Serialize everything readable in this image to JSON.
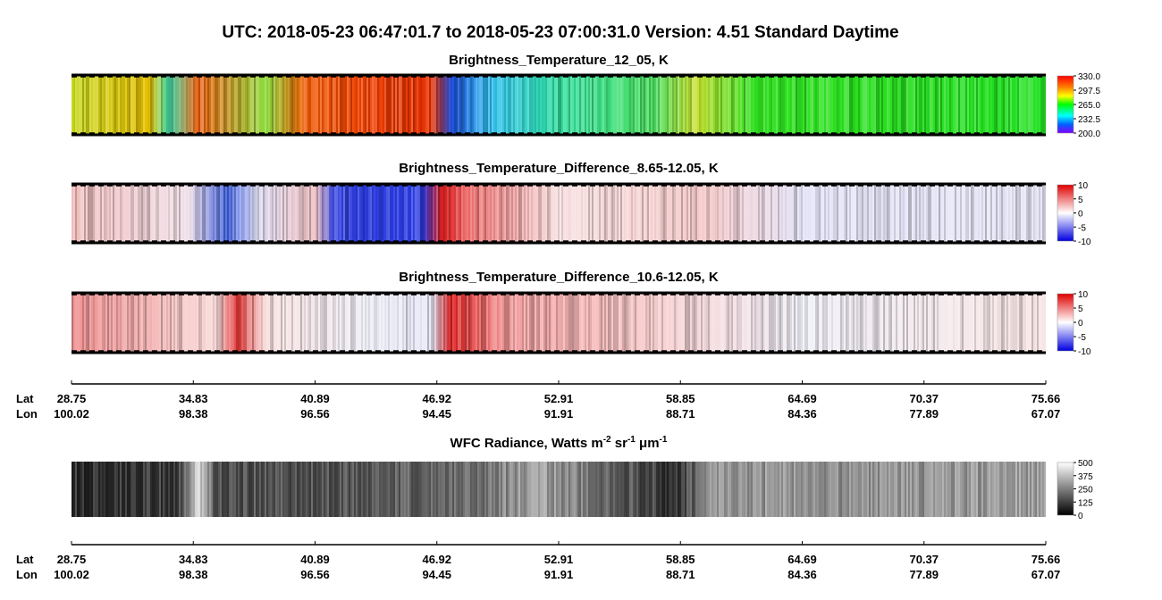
{
  "title": "UTC:  2018-05-23   06:47:01.7  to  2018-05-23   07:00:31.0    Version: 4.51  Standard Daytime",
  "panels": [
    {
      "title": "Brightness_Temperature_12_05, K",
      "colorbar": [
        {
          "value": 330,
          "label": "330.0"
        },
        297.5,
        {
          "value": 265,
          "label": "265.0"
        },
        232.5,
        {
          "value": 200,
          "label": "200.0"
        }
      ]
    },
    {
      "title": "Brightness_Temperature_Difference_8.65-12.05, K",
      "colorbar": [
        10,
        5,
        0,
        -5,
        -10
      ]
    },
    {
      "title": "Brightness_Temperature_Difference_10.6-12.05, K",
      "colorbar": [
        10,
        5,
        0,
        -5,
        -10
      ]
    },
    {
      "title_parts": [
        "WFC Radiance, Watts m",
        "-2",
        " sr",
        "-1",
        " μm",
        "-1"
      ],
      "colorbar": [
        500,
        375,
        250,
        125,
        0
      ]
    }
  ],
  "axes": [
    {
      "lat_label": "Lat",
      "lon_label": "Lon",
      "lat": [
        28.75,
        34.83,
        40.89,
        46.92,
        52.91,
        58.85,
        64.69,
        70.37,
        75.66
      ],
      "lon": [
        100.02,
        98.38,
        96.56,
        94.45,
        91.91,
        88.71,
        84.36,
        77.89,
        67.07
      ]
    },
    {
      "lat_label": "Lat",
      "lon_label": "Lon",
      "lat": [
        28.75,
        34.83,
        40.89,
        46.92,
        52.91,
        58.85,
        64.69,
        70.37,
        75.66
      ],
      "lon": [
        100.02,
        98.38,
        96.56,
        94.45,
        91.91,
        88.71,
        84.36,
        77.89,
        67.07
      ]
    }
  ]
}
